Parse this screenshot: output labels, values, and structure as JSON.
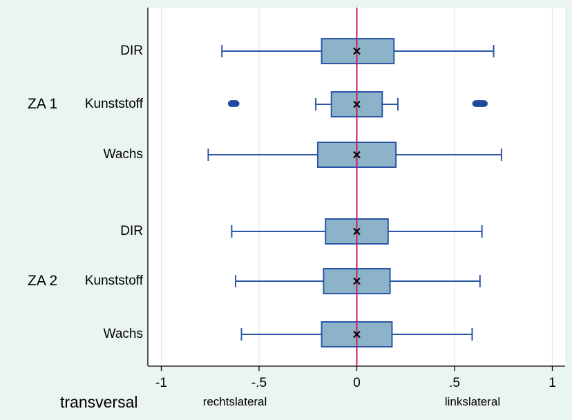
{
  "chart_data": {
    "type": "box",
    "orientation": "horizontal",
    "xlabel": "transversal",
    "x_side_labels": {
      "left": "rechtslateral",
      "right": "linkslateral"
    },
    "xlim": [
      -1.05,
      1.08
    ],
    "xticks": [
      -1,
      -0.5,
      0,
      0.5,
      1
    ],
    "xtick_labels": [
      "-1",
      "-.5",
      "0",
      ".5",
      "1"
    ],
    "grid": true,
    "reference_line_x": 0,
    "mean_marker": "x",
    "groups": [
      {
        "name": "ZA 1",
        "boxes": [
          {
            "label": "DIR",
            "whisker_low": -0.69,
            "q1": -0.18,
            "median": 0,
            "q3": 0.19,
            "whisker_high": 0.7,
            "outliers": []
          },
          {
            "label": "Kunststoff",
            "whisker_low": -0.21,
            "q1": -0.13,
            "median": 0,
            "q3": 0.13,
            "whisker_high": 0.21,
            "outliers": [
              -0.64,
              -0.63,
              -0.62,
              0.61,
              0.62,
              0.63,
              0.64,
              0.65
            ]
          },
          {
            "label": "Wachs",
            "whisker_low": -0.76,
            "q1": -0.2,
            "median": 0,
            "q3": 0.2,
            "whisker_high": 0.74,
            "outliers": []
          }
        ]
      },
      {
        "name": "ZA 2",
        "boxes": [
          {
            "label": "DIR",
            "whisker_low": -0.64,
            "q1": -0.16,
            "median": 0,
            "q3": 0.16,
            "whisker_high": 0.64,
            "outliers": []
          },
          {
            "label": "Kunststoff",
            "whisker_low": -0.62,
            "q1": -0.17,
            "median": 0,
            "q3": 0.17,
            "whisker_high": 0.63,
            "outliers": []
          },
          {
            "label": "Wachs",
            "whisker_low": -0.59,
            "q1": -0.18,
            "median": 0,
            "q3": 0.18,
            "whisker_high": 0.59,
            "outliers": []
          }
        ]
      }
    ],
    "colors": {
      "background": "#eaf4f1",
      "plot_area": "#ffffff",
      "box_fill": "#8db3c9",
      "box_stroke": "#2c56a7",
      "outlier": "#1f4aa0",
      "reference_line": "#c8185a",
      "grid": "#dde9e6",
      "axis": "#000000"
    }
  }
}
